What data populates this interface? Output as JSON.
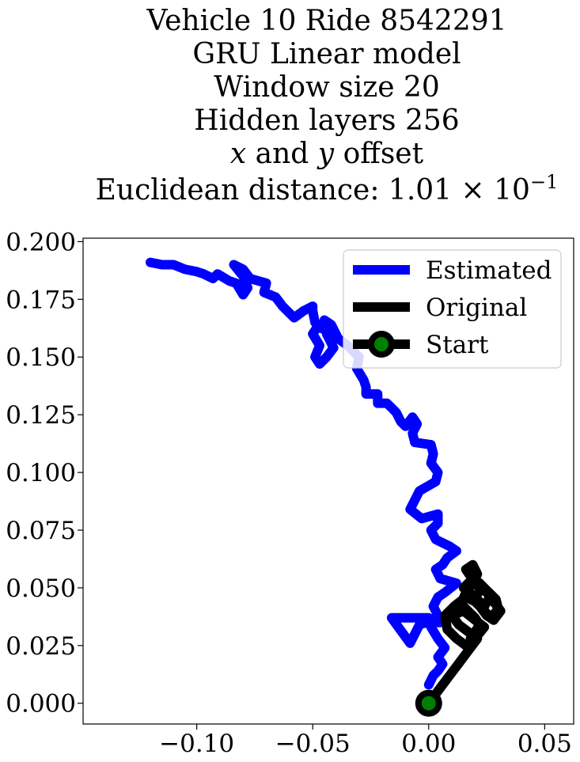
{
  "chart_data": {
    "type": "line",
    "title_lines": [
      "Vehicle 10 Ride 8542291",
      "GRU Linear model",
      "Window size 20",
      "Hidden layers 256",
      "x and y offset",
      "Euclidean distance: 1.01 × 10−1"
    ],
    "title_parts": {
      "offset_x": "x",
      "offset_and": " and ",
      "offset_y": "y",
      "offset_rest": " offset",
      "dist_prefix": "Euclidean distance: 1.01",
      "dist_times": " × 10",
      "dist_exp": "−1"
    },
    "xlabel": "",
    "ylabel": "",
    "xlim": [
      -0.149,
      0.0625
    ],
    "ylim": [
      -0.009,
      0.2015
    ],
    "x_ticks": [
      -0.1,
      -0.05,
      0.0,
      0.05
    ],
    "x_tick_labels": [
      "−0.10",
      "−0.05",
      "0.00",
      "0.05"
    ],
    "y_ticks": [
      0.0,
      0.025,
      0.05,
      0.075,
      0.1,
      0.125,
      0.15,
      0.175,
      0.2
    ],
    "y_tick_labels": [
      "0.000",
      "0.025",
      "0.050",
      "0.075",
      "0.100",
      "0.125",
      "0.150",
      "0.175",
      "0.200"
    ],
    "grid": false,
    "legend_position": "top-right",
    "legend": [
      "Estimated",
      "Original",
      "Start"
    ],
    "series": [
      {
        "name": "Estimated",
        "color": "#0000ff",
        "x": [
          0.0,
          0.002,
          0.004,
          0.006,
          0.004,
          0.007,
          0.004,
          0.001,
          0.004,
          0.002,
          -0.004,
          -0.008,
          -0.016,
          -0.007,
          0.0,
          0.003,
          0.005,
          0.004,
          0.002,
          0.004,
          0.007,
          0.012,
          0.005,
          0.003,
          0.006,
          0.008,
          0.012,
          0.009,
          0.003,
          0.001,
          0.004,
          0.004,
          -0.003,
          -0.008,
          -0.006,
          -0.004,
          0.003,
          0.004,
          0.001,
          0.002,
          0.001,
          -0.006,
          -0.007,
          -0.005,
          -0.007,
          -0.01,
          -0.012,
          -0.014,
          -0.016,
          -0.018,
          -0.022,
          -0.022,
          -0.027,
          -0.027,
          -0.028,
          -0.031,
          -0.03,
          -0.033,
          -0.035,
          -0.039,
          -0.042,
          -0.045,
          -0.044,
          -0.041,
          -0.044,
          -0.047,
          -0.049,
          -0.047,
          -0.05,
          -0.048,
          -0.045,
          -0.049,
          -0.05,
          -0.05,
          -0.054,
          -0.058,
          -0.063,
          -0.066,
          -0.071,
          -0.07,
          -0.077,
          -0.08,
          -0.084,
          -0.08,
          -0.078,
          -0.08,
          -0.083,
          -0.086,
          -0.091,
          -0.093,
          -0.097,
          -0.1,
          -0.105,
          -0.11,
          -0.115,
          -0.12
        ],
        "y": [
          0.008,
          0.012,
          0.014,
          0.017,
          0.02,
          0.024,
          0.028,
          0.033,
          0.038,
          0.036,
          0.034,
          0.026,
          0.037,
          0.037,
          0.037,
          0.035,
          0.035,
          0.038,
          0.042,
          0.046,
          0.048,
          0.052,
          0.054,
          0.058,
          0.06,
          0.063,
          0.066,
          0.068,
          0.071,
          0.075,
          0.078,
          0.082,
          0.08,
          0.084,
          0.088,
          0.092,
          0.096,
          0.1,
          0.104,
          0.108,
          0.112,
          0.113,
          0.117,
          0.121,
          0.124,
          0.12,
          0.122,
          0.126,
          0.128,
          0.13,
          0.13,
          0.134,
          0.134,
          0.137,
          0.14,
          0.145,
          0.15,
          0.153,
          0.155,
          0.158,
          0.164,
          0.166,
          0.16,
          0.154,
          0.15,
          0.147,
          0.15,
          0.155,
          0.16,
          0.163,
          0.162,
          0.165,
          0.17,
          0.172,
          0.17,
          0.167,
          0.172,
          0.176,
          0.178,
          0.182,
          0.184,
          0.188,
          0.19,
          0.185,
          0.18,
          0.177,
          0.182,
          0.183,
          0.186,
          0.184,
          0.186,
          0.187,
          0.188,
          0.19,
          0.19,
          0.191
        ]
      },
      {
        "name": "Original",
        "color": "#000000",
        "x": [
          0.0,
          0.003,
          0.006,
          0.009,
          0.012,
          0.015,
          0.018,
          0.021,
          0.017,
          0.013,
          0.01,
          0.015,
          0.02,
          0.024,
          0.02,
          0.016,
          0.012,
          0.008,
          0.007,
          0.011,
          0.016,
          0.02,
          0.024,
          0.027,
          0.03,
          0.029,
          0.026,
          0.023,
          0.02,
          0.022,
          0.025,
          0.028,
          0.031,
          0.028,
          0.025,
          0.021,
          0.018,
          0.015,
          0.02,
          0.024,
          0.027,
          0.022,
          0.018,
          0.016,
          0.019,
          0.021,
          0.019,
          0.016,
          0.014,
          0.017,
          0.02,
          0.022,
          0.02,
          0.018
        ],
        "y": [
          0.0,
          0.004,
          0.008,
          0.012,
          0.016,
          0.02,
          0.024,
          0.028,
          0.031,
          0.034,
          0.038,
          0.04,
          0.036,
          0.033,
          0.028,
          0.025,
          0.028,
          0.032,
          0.038,
          0.042,
          0.046,
          0.044,
          0.04,
          0.037,
          0.041,
          0.045,
          0.048,
          0.05,
          0.046,
          0.042,
          0.038,
          0.036,
          0.04,
          0.044,
          0.048,
          0.051,
          0.053,
          0.05,
          0.046,
          0.042,
          0.047,
          0.052,
          0.055,
          0.058,
          0.06,
          0.056,
          0.052,
          0.048,
          0.043,
          0.04,
          0.037,
          0.034,
          0.031,
          0.028
        ]
      }
    ],
    "start_point": {
      "name": "Start",
      "x": 0.0,
      "y": 0.0,
      "marker_face": "#008000",
      "marker_edge": "#000000"
    }
  }
}
